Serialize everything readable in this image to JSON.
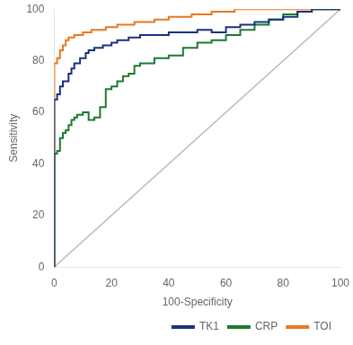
{
  "chart_data": {
    "type": "line",
    "xlabel": "100-Specificity",
    "ylabel": "Sensitivity",
    "xlim": [
      0,
      100
    ],
    "ylim": [
      0,
      100
    ],
    "xticks": [
      0,
      20,
      40,
      60,
      80,
      100
    ],
    "yticks": [
      0,
      20,
      40,
      60,
      80,
      100
    ],
    "grid": false,
    "legend": "lower right",
    "series": [
      {
        "color": "#c8b8b8",
        "x": [
          0,
          100
        ],
        "values": [
          0,
          100
        ]
      },
      {
        "name": "TK1",
        "color": "#1a3080",
        "x": [
          0,
          0,
          1,
          1,
          2,
          2,
          3,
          3,
          4,
          5,
          5,
          6,
          6,
          7,
          7,
          9,
          9,
          11,
          11,
          12,
          12,
          14,
          14,
          17,
          17,
          20,
          20,
          22,
          22,
          26,
          26,
          30,
          30,
          40,
          40,
          50,
          50,
          55,
          55,
          60,
          60,
          65,
          65,
          70,
          70,
          75,
          75,
          80,
          80,
          85,
          85,
          90,
          90,
          100
        ],
        "values": [
          0,
          65,
          65,
          67,
          67,
          70,
          70,
          72,
          72,
          72,
          75,
          75,
          77,
          77,
          79,
          79,
          81,
          81,
          83,
          83,
          84,
          84,
          85,
          85,
          86,
          86,
          87,
          87,
          88,
          88,
          89,
          89,
          90,
          90,
          91,
          91,
          92,
          92,
          91,
          91,
          93,
          93,
          94,
          94,
          95,
          95,
          96,
          96,
          97,
          97,
          99,
          99,
          100,
          100
        ]
      },
      {
        "name": "CRP",
        "color": "#1a7a30",
        "x": [
          0,
          0,
          1,
          1,
          2,
          2,
          3,
          3,
          4,
          4,
          5,
          5,
          6,
          6,
          7,
          7,
          8,
          8,
          10,
          10,
          12,
          12,
          14,
          14,
          16,
          16,
          18,
          18,
          20,
          20,
          22,
          22,
          24,
          24,
          26,
          26,
          28,
          28,
          30,
          30,
          35,
          35,
          40,
          40,
          45,
          45,
          50,
          50,
          55,
          55,
          60,
          60,
          65,
          65,
          70,
          70,
          75,
          75,
          80,
          80,
          85,
          85,
          90,
          90,
          100
        ],
        "values": [
          0,
          44,
          44,
          45,
          45,
          50,
          50,
          52,
          52,
          53,
          53,
          55,
          55,
          57,
          57,
          58,
          58,
          59,
          59,
          60,
          60,
          57,
          57,
          58,
          58,
          62,
          62,
          69,
          69,
          70,
          70,
          72,
          72,
          74,
          74,
          75,
          75,
          78,
          78,
          79,
          79,
          81,
          81,
          82,
          82,
          85,
          85,
          87,
          87,
          88,
          88,
          90,
          90,
          92,
          92,
          94,
          94,
          96,
          96,
          98,
          98,
          99,
          99,
          100,
          100
        ]
      },
      {
        "name": "TOI",
        "color": "#e87820",
        "x": [
          0,
          0,
          1,
          1,
          2,
          2,
          3,
          3,
          4,
          4,
          5,
          5,
          7,
          7,
          10,
          10,
          13,
          13,
          18,
          18,
          22,
          22,
          28,
          28,
          35,
          35,
          40,
          40,
          48,
          48,
          55,
          55,
          63,
          63,
          100
        ],
        "values": [
          0,
          79,
          79,
          81,
          81,
          84,
          84,
          86,
          86,
          88,
          88,
          89,
          89,
          90,
          90,
          91,
          91,
          92,
          92,
          93,
          93,
          94,
          94,
          95,
          95,
          96,
          96,
          97,
          97,
          98,
          98,
          99,
          99,
          100,
          100
        ]
      }
    ]
  }
}
